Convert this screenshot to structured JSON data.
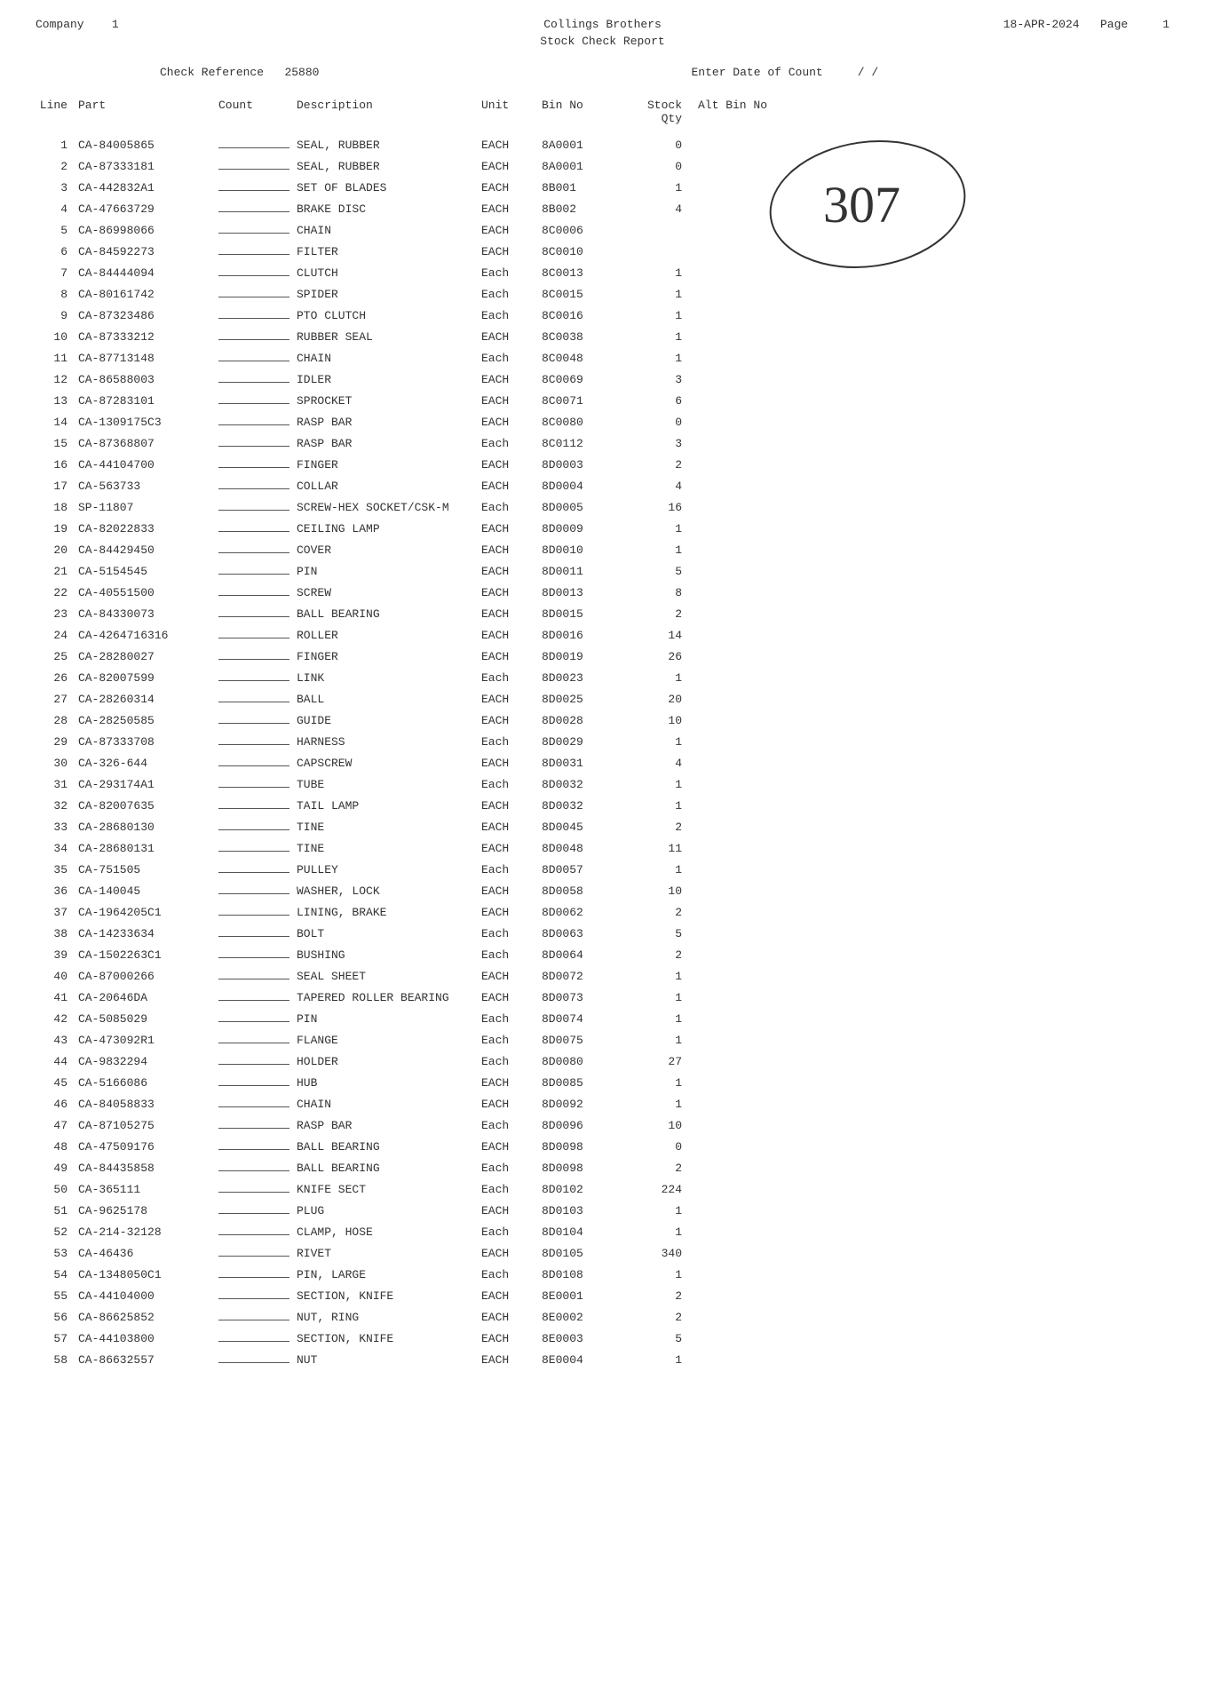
{
  "header": {
    "company_label": "Company",
    "company_no": "1",
    "title1": "Collings Brothers",
    "title2": "Stock Check Report",
    "date": "18-APR-2024",
    "page_label": "Page",
    "page_no": "1"
  },
  "ref": {
    "check_ref_label": "Check Reference",
    "check_ref_no": "25880",
    "date_label": "Enter Date of Count",
    "date_slashes": "/    /"
  },
  "columns": {
    "line": "Line",
    "part": "Part",
    "count": "Count",
    "description": "Description",
    "unit": "Unit",
    "bin": "Bin No",
    "stock": "Stock Qty",
    "alt": "Alt Bin No"
  },
  "handwritten": "307",
  "rows": [
    {
      "line": "1",
      "part": "CA-84005865",
      "desc": "SEAL, RUBBER",
      "unit": "EACH",
      "bin": "8A0001",
      "stock": "0"
    },
    {
      "line": "2",
      "part": "CA-87333181",
      "desc": "SEAL, RUBBER",
      "unit": "EACH",
      "bin": "8A0001",
      "stock": "0"
    },
    {
      "line": "3",
      "part": "CA-442832A1",
      "desc": "SET OF BLADES",
      "unit": "EACH",
      "bin": "8B001",
      "stock": "1"
    },
    {
      "line": "4",
      "part": "CA-47663729",
      "desc": "BRAKE DISC",
      "unit": "EACH",
      "bin": "8B002",
      "stock": "4"
    },
    {
      "line": "5",
      "part": "CA-86998066",
      "desc": "CHAIN",
      "unit": "EACH",
      "bin": "8C0006",
      "stock": ""
    },
    {
      "line": "6",
      "part": "CA-84592273",
      "desc": "FILTER",
      "unit": "EACH",
      "bin": "8C0010",
      "stock": ""
    },
    {
      "line": "7",
      "part": "CA-84444094",
      "desc": "CLUTCH",
      "unit": "Each",
      "bin": "8C0013",
      "stock": "1"
    },
    {
      "line": "8",
      "part": "CA-80161742",
      "desc": "SPIDER",
      "unit": "Each",
      "bin": "8C0015",
      "stock": "1"
    },
    {
      "line": "9",
      "part": "CA-87323486",
      "desc": "PTO CLUTCH",
      "unit": "Each",
      "bin": "8C0016",
      "stock": "1"
    },
    {
      "line": "10",
      "part": "CA-87333212",
      "desc": "RUBBER SEAL",
      "unit": "EACH",
      "bin": "8C0038",
      "stock": "1"
    },
    {
      "line": "11",
      "part": "CA-87713148",
      "desc": "CHAIN",
      "unit": "Each",
      "bin": "8C0048",
      "stock": "1"
    },
    {
      "line": "12",
      "part": "CA-86588003",
      "desc": "IDLER",
      "unit": "EACH",
      "bin": "8C0069",
      "stock": "3"
    },
    {
      "line": "13",
      "part": "CA-87283101",
      "desc": "SPROCKET",
      "unit": "EACH",
      "bin": "8C0071",
      "stock": "6"
    },
    {
      "line": "14",
      "part": "CA-1309175C3",
      "desc": "RASP BAR",
      "unit": "EACH",
      "bin": "8C0080",
      "stock": "0"
    },
    {
      "line": "15",
      "part": "CA-87368807",
      "desc": "RASP BAR",
      "unit": "Each",
      "bin": "8C0112",
      "stock": "3"
    },
    {
      "line": "16",
      "part": "CA-44104700",
      "desc": "FINGER",
      "unit": "EACH",
      "bin": "8D0003",
      "stock": "2"
    },
    {
      "line": "17",
      "part": "CA-563733",
      "desc": "COLLAR",
      "unit": "EACH",
      "bin": "8D0004",
      "stock": "4"
    },
    {
      "line": "18",
      "part": "SP-11807",
      "desc": "SCREW-HEX SOCKET/CSK-M",
      "unit": "Each",
      "bin": "8D0005",
      "stock": "16"
    },
    {
      "line": "19",
      "part": "CA-82022833",
      "desc": "CEILING LAMP",
      "unit": "EACH",
      "bin": "8D0009",
      "stock": "1"
    },
    {
      "line": "20",
      "part": "CA-84429450",
      "desc": "COVER",
      "unit": "EACH",
      "bin": "8D0010",
      "stock": "1"
    },
    {
      "line": "21",
      "part": "CA-5154545",
      "desc": "PIN",
      "unit": "EACH",
      "bin": "8D0011",
      "stock": "5"
    },
    {
      "line": "22",
      "part": "CA-40551500",
      "desc": "SCREW",
      "unit": "EACH",
      "bin": "8D0013",
      "stock": "8"
    },
    {
      "line": "23",
      "part": "CA-84330073",
      "desc": "BALL BEARING",
      "unit": "EACH",
      "bin": "8D0015",
      "stock": "2"
    },
    {
      "line": "24",
      "part": "CA-4264716316",
      "desc": "ROLLER",
      "unit": "EACH",
      "bin": "8D0016",
      "stock": "14"
    },
    {
      "line": "25",
      "part": "CA-28280027",
      "desc": "FINGER",
      "unit": "EACH",
      "bin": "8D0019",
      "stock": "26"
    },
    {
      "line": "26",
      "part": "CA-82007599",
      "desc": "LINK",
      "unit": "Each",
      "bin": "8D0023",
      "stock": "1"
    },
    {
      "line": "27",
      "part": "CA-28260314",
      "desc": "BALL",
      "unit": "EACH",
      "bin": "8D0025",
      "stock": "20"
    },
    {
      "line": "28",
      "part": "CA-28250585",
      "desc": "GUIDE",
      "unit": "EACH",
      "bin": "8D0028",
      "stock": "10"
    },
    {
      "line": "29",
      "part": "CA-87333708",
      "desc": "HARNESS",
      "unit": "Each",
      "bin": "8D0029",
      "stock": "1"
    },
    {
      "line": "30",
      "part": "CA-326-644",
      "desc": "CAPSCREW",
      "unit": "EACH",
      "bin": "8D0031",
      "stock": "4"
    },
    {
      "line": "31",
      "part": "CA-293174A1",
      "desc": "TUBE",
      "unit": "Each",
      "bin": "8D0032",
      "stock": "1"
    },
    {
      "line": "32",
      "part": "CA-82007635",
      "desc": "TAIL LAMP",
      "unit": "EACH",
      "bin": "8D0032",
      "stock": "1"
    },
    {
      "line": "33",
      "part": "CA-28680130",
      "desc": "TINE",
      "unit": "EACH",
      "bin": "8D0045",
      "stock": "2"
    },
    {
      "line": "34",
      "part": "CA-28680131",
      "desc": "TINE",
      "unit": "EACH",
      "bin": "8D0048",
      "stock": "11"
    },
    {
      "line": "35",
      "part": "CA-751505",
      "desc": "PULLEY",
      "unit": "Each",
      "bin": "8D0057",
      "stock": "1"
    },
    {
      "line": "36",
      "part": "CA-140045",
      "desc": "WASHER, LOCK",
      "unit": "EACH",
      "bin": "8D0058",
      "stock": "10"
    },
    {
      "line": "37",
      "part": "CA-1964205C1",
      "desc": "LINING, BRAKE",
      "unit": "EACH",
      "bin": "8D0062",
      "stock": "2"
    },
    {
      "line": "38",
      "part": "CA-14233634",
      "desc": "BOLT",
      "unit": "Each",
      "bin": "8D0063",
      "stock": "5"
    },
    {
      "line": "39",
      "part": "CA-1502263C1",
      "desc": "BUSHING",
      "unit": "Each",
      "bin": "8D0064",
      "stock": "2"
    },
    {
      "line": "40",
      "part": "CA-87000266",
      "desc": "SEAL SHEET",
      "unit": "EACH",
      "bin": "8D0072",
      "stock": "1"
    },
    {
      "line": "41",
      "part": "CA-20646DA",
      "desc": "TAPERED ROLLER BEARING",
      "unit": "EACH",
      "bin": "8D0073",
      "stock": "1"
    },
    {
      "line": "42",
      "part": "CA-5085029",
      "desc": "PIN",
      "unit": "Each",
      "bin": "8D0074",
      "stock": "1"
    },
    {
      "line": "43",
      "part": "CA-473092R1",
      "desc": "FLANGE",
      "unit": "Each",
      "bin": "8D0075",
      "stock": "1"
    },
    {
      "line": "44",
      "part": "CA-9832294",
      "desc": "HOLDER",
      "unit": "Each",
      "bin": "8D0080",
      "stock": "27"
    },
    {
      "line": "45",
      "part": "CA-5166086",
      "desc": "HUB",
      "unit": "EACH",
      "bin": "8D0085",
      "stock": "1"
    },
    {
      "line": "46",
      "part": "CA-84058833",
      "desc": "CHAIN",
      "unit": "EACH",
      "bin": "8D0092",
      "stock": "1"
    },
    {
      "line": "47",
      "part": "CA-87105275",
      "desc": "RASP BAR",
      "unit": "Each",
      "bin": "8D0096",
      "stock": "10"
    },
    {
      "line": "48",
      "part": "CA-47509176",
      "desc": "BALL BEARING",
      "unit": "EACH",
      "bin": "8D0098",
      "stock": "0"
    },
    {
      "line": "49",
      "part": "CA-84435858",
      "desc": "BALL BEARING",
      "unit": "Each",
      "bin": "8D0098",
      "stock": "2"
    },
    {
      "line": "50",
      "part": "CA-365111",
      "desc": "KNIFE SECT",
      "unit": "Each",
      "bin": "8D0102",
      "stock": "224"
    },
    {
      "line": "51",
      "part": "CA-9625178",
      "desc": "PLUG",
      "unit": "EACH",
      "bin": "8D0103",
      "stock": "1"
    },
    {
      "line": "52",
      "part": "CA-214-32128",
      "desc": "CLAMP, HOSE",
      "unit": "Each",
      "bin": "8D0104",
      "stock": "1"
    },
    {
      "line": "53",
      "part": "CA-46436",
      "desc": "RIVET",
      "unit": "EACH",
      "bin": "8D0105",
      "stock": "340"
    },
    {
      "line": "54",
      "part": "CA-1348050C1",
      "desc": "PIN, LARGE",
      "unit": "Each",
      "bin": "8D0108",
      "stock": "1"
    },
    {
      "line": "55",
      "part": "CA-44104000",
      "desc": "SECTION, KNIFE",
      "unit": "EACH",
      "bin": "8E0001",
      "stock": "2"
    },
    {
      "line": "56",
      "part": "CA-86625852",
      "desc": "NUT, RING",
      "unit": "EACH",
      "bin": "8E0002",
      "stock": "2"
    },
    {
      "line": "57",
      "part": "CA-44103800",
      "desc": "SECTION, KNIFE",
      "unit": "EACH",
      "bin": "8E0003",
      "stock": "5"
    },
    {
      "line": "58",
      "part": "CA-86632557",
      "desc": "NUT",
      "unit": "EACH",
      "bin": "8E0004",
      "stock": "1"
    }
  ]
}
